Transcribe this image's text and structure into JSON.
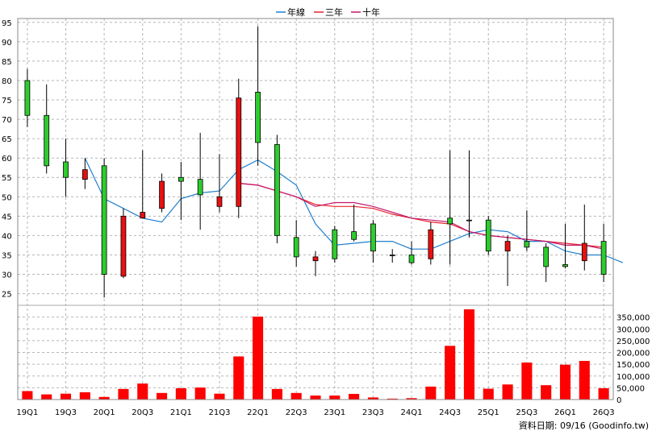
{
  "chart_data": {
    "type": "candlestick+bar",
    "legend": [
      {
        "name": "年線",
        "color": "#1f7fd0"
      },
      {
        "name": "三年",
        "color": "#e8232e"
      },
      {
        "name": "十年",
        "color": "#c2186b"
      }
    ],
    "source_text": "資料日期: 09/16  (Goodinfo.tw)",
    "price_axis": {
      "min": 22,
      "max": 96,
      "ticks": [
        25,
        30,
        35,
        40,
        45,
        50,
        55,
        60,
        65,
        70,
        75,
        80,
        85,
        90,
        95
      ]
    },
    "volume_axis": {
      "min": 0,
      "max": 400000,
      "ticks": [
        0,
        50000,
        100000,
        150000,
        200000,
        250000,
        300000,
        350000
      ],
      "tick_labels": [
        "0",
        "50,000",
        "100,000",
        "150,000",
        "200,000",
        "250,000",
        "300,000",
        "350,000"
      ]
    },
    "x_labels": [
      {
        "i": 0,
        "label": "19Q1"
      },
      {
        "i": 2,
        "label": "19Q3"
      },
      {
        "i": 4,
        "label": "20Q1"
      },
      {
        "i": 6,
        "label": "20Q3"
      },
      {
        "i": 8,
        "label": "21Q1"
      },
      {
        "i": 10,
        "label": "21Q3"
      },
      {
        "i": 12,
        "label": "22Q1"
      },
      {
        "i": 14,
        "label": "22Q3"
      },
      {
        "i": 16,
        "label": "23Q1"
      },
      {
        "i": 18,
        "label": "23Q3"
      },
      {
        "i": 20,
        "label": "24Q1"
      },
      {
        "i": 22,
        "label": "24Q3"
      },
      {
        "i": 24,
        "label": "25Q1"
      },
      {
        "i": 26,
        "label": "25Q3"
      },
      {
        "i": 28,
        "label": "26Q1"
      },
      {
        "i": 30,
        "label": "26Q3"
      }
    ],
    "candles": [
      {
        "o": 71,
        "h": 83,
        "l": 68,
        "c": 80
      },
      {
        "o": 58,
        "h": 79,
        "l": 56,
        "c": 71
      },
      {
        "o": 55,
        "h": 65,
        "l": 50,
        "c": 59
      },
      {
        "o": 57,
        "h": 60,
        "l": 52,
        "c": 54.5
      },
      {
        "o": 30,
        "h": 60,
        "l": 24,
        "c": 58
      },
      {
        "o": 45,
        "h": 47,
        "l": 29,
        "c": 29.5
      },
      {
        "o": 46,
        "h": 62,
        "l": 45,
        "c": 44.5
      },
      {
        "o": 54,
        "h": 56,
        "l": 46,
        "c": 47
      },
      {
        "o": 54,
        "h": 59,
        "l": 44,
        "c": 55
      },
      {
        "o": 50.5,
        "h": 66.5,
        "l": 41.5,
        "c": 54.5
      },
      {
        "o": 50,
        "h": 61,
        "l": 46,
        "c": 47.5
      },
      {
        "o": 75.5,
        "h": 80.5,
        "l": 44.5,
        "c": 47.5
      },
      {
        "o": 64,
        "h": 94,
        "l": 58,
        "c": 77
      },
      {
        "o": 40,
        "h": 66,
        "l": 38,
        "c": 63.5
      },
      {
        "o": 34.5,
        "h": 44,
        "l": 32,
        "c": 39.5
      },
      {
        "o": 34.5,
        "h": 36,
        "l": 29.5,
        "c": 33.5
      },
      {
        "o": 34,
        "h": 42.5,
        "l": 33,
        "c": 41.5
      },
      {
        "o": 39,
        "h": 48,
        "l": 38.5,
        "c": 41
      },
      {
        "o": 36,
        "h": 44,
        "l": 33,
        "c": 43
      },
      {
        "o": 35,
        "h": 36.5,
        "l": 33,
        "c": 35
      },
      {
        "o": 33,
        "h": 38.5,
        "l": 32.5,
        "c": 35
      },
      {
        "o": 41.5,
        "h": 43.5,
        "l": 32.5,
        "c": 34
      },
      {
        "o": 43,
        "h": 62,
        "l": 32.5,
        "c": 44.5
      },
      {
        "o": 44,
        "h": 62,
        "l": 39.5,
        "c": 44
      },
      {
        "o": 36,
        "h": 45,
        "l": 35,
        "c": 44
      },
      {
        "o": 38.5,
        "h": 40,
        "l": 27,
        "c": 36
      },
      {
        "o": 37,
        "h": 46.5,
        "l": 36,
        "c": 38.5
      },
      {
        "o": 32,
        "h": 38,
        "l": 28,
        "c": 37
      },
      {
        "o": 32,
        "h": 43,
        "l": 31.5,
        "c": 32.5
      },
      {
        "o": 38,
        "h": 48,
        "l": 31,
        "c": 33.5
      },
      {
        "o": 30,
        "h": 43,
        "l": 28,
        "c": 38.5
      }
    ],
    "volume": [
      36000,
      22000,
      25000,
      31000,
      11000,
      45000,
      68000,
      28000,
      48000,
      51000,
      25000,
      183000,
      352000,
      45000,
      28000,
      17000,
      17000,
      24000,
      9000,
      4000,
      6000,
      55000,
      228000,
      383000,
      46000,
      64000,
      157000,
      61000,
      148000,
      164000,
      48000
    ],
    "series": [
      {
        "name": "年線",
        "color": "#1f7fd0",
        "start": 3,
        "values": [
          60,
          49.5,
          47,
          44.5,
          43.5,
          49.5,
          51,
          51.5,
          57,
          59.5,
          56.5,
          53,
          43,
          37.5,
          38,
          38.5,
          38.5,
          36.5,
          36.5,
          38.5,
          40.5,
          41.5,
          41,
          38.5,
          38.5,
          36,
          35,
          35,
          33
        ]
      },
      {
        "name": "三年",
        "color": "#e8232e",
        "start": 11,
        "values": [
          53.5,
          53,
          51.5,
          50,
          48,
          47.5,
          47.5,
          47,
          45.5,
          44.5,
          43.5,
          43,
          41,
          40,
          39.5,
          39,
          38.5,
          38,
          37.5,
          37
        ]
      },
      {
        "name": "十年",
        "color": "#c2186b",
        "start": 11,
        "values": [
          53.5,
          53,
          51.5,
          50,
          47.5,
          48.5,
          48.5,
          47.5,
          46,
          44.5,
          44,
          43.5,
          41,
          40,
          39.5,
          39,
          38.5,
          37.5,
          37.5,
          36.5
        ]
      }
    ]
  }
}
